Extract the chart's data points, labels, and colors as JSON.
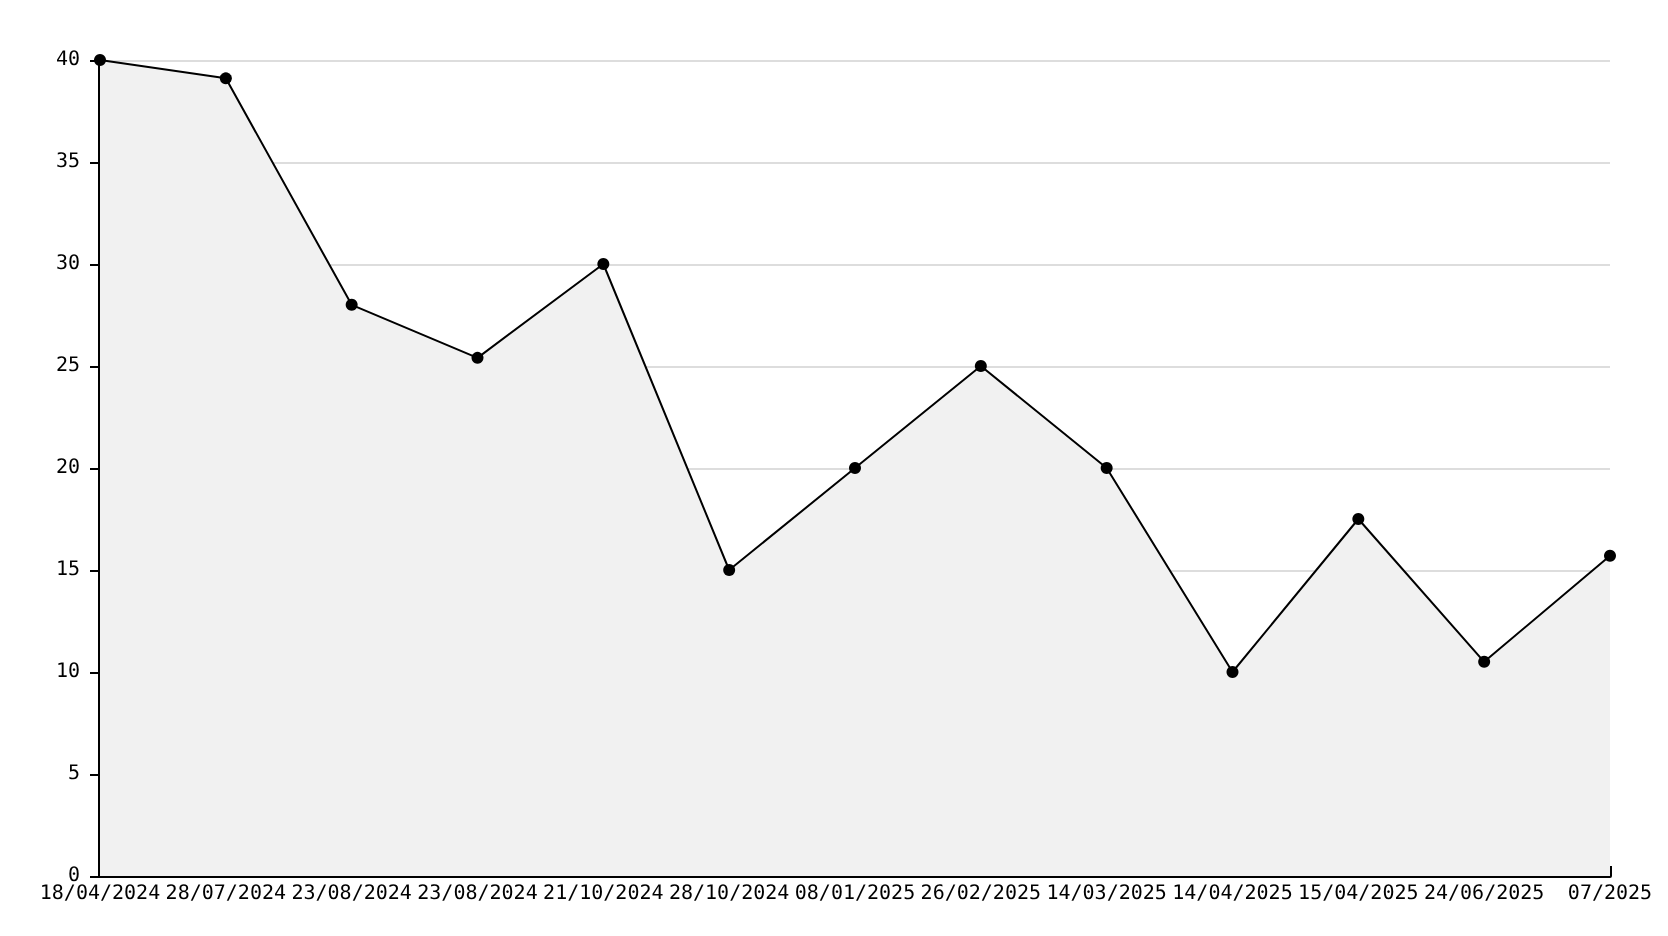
{
  "chart_data": {
    "type": "area",
    "categories": [
      "18/04/2024",
      "28/07/2024",
      "23/08/2024",
      "23/08/2024",
      "21/10/2024",
      "28/10/2024",
      "08/01/2025",
      "26/02/2025",
      "14/03/2025",
      "14/04/2025",
      "15/04/2025",
      "24/06/2025",
      "07/2025"
    ],
    "series": [
      {
        "color": "#000000",
        "values": [
          40,
          39.1,
          28,
          25.4,
          30,
          15,
          20,
          25,
          20,
          10,
          17.5,
          10.5,
          15.7
        ]
      }
    ],
    "ylim": [
      0,
      40
    ],
    "yticks": [
      0,
      5,
      10,
      15,
      20,
      25,
      30,
      35,
      40
    ],
    "grid": "y",
    "marker": "circle",
    "line_style": "solid"
  }
}
